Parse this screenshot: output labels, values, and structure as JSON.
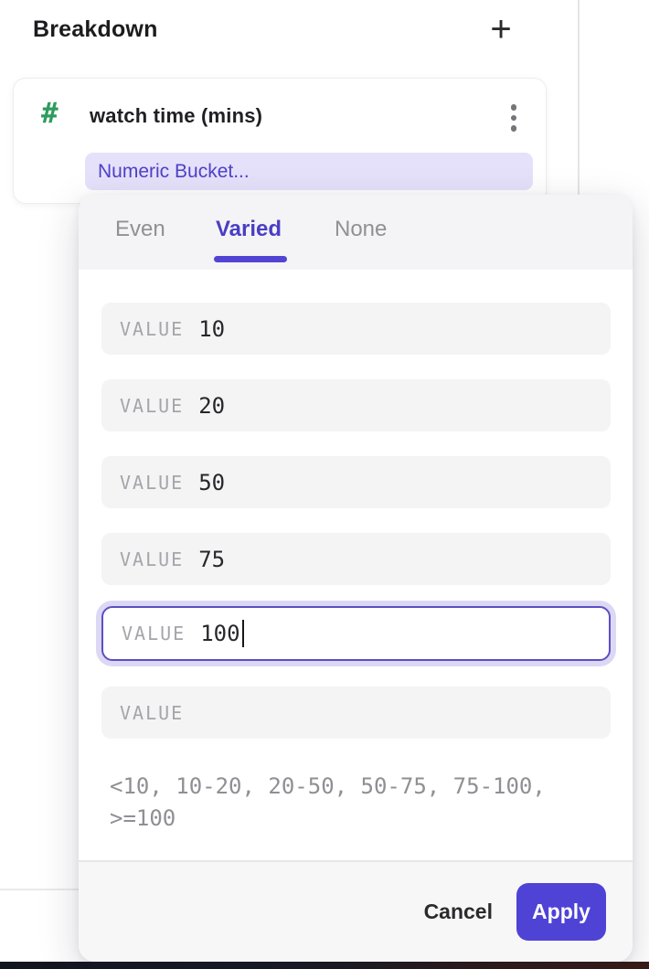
{
  "breakdown_panel": {
    "title": "Breakdown",
    "add_button": "+"
  },
  "property_card": {
    "type_icon": "#",
    "name": "watch time (mins)",
    "bucket_label": "Numeric Bucket..."
  },
  "bucket_popover": {
    "tabs": [
      {
        "label": "Even",
        "active": false
      },
      {
        "label": "Varied",
        "active": true
      },
      {
        "label": "None",
        "active": false
      }
    ],
    "value_rows": [
      {
        "label": "VALUE",
        "value": "10"
      },
      {
        "label": "VALUE",
        "value": "20"
      },
      {
        "label": "VALUE",
        "value": "50"
      },
      {
        "label": "VALUE",
        "value": "75"
      },
      {
        "label": "VALUE",
        "value": "100",
        "focused": true
      },
      {
        "label": "VALUE",
        "value": ""
      }
    ],
    "preview": "<10, 10-20, 20-50, 50-75, 75-100, >=100",
    "footer": {
      "cancel": "Cancel",
      "apply": "Apply"
    }
  },
  "colors": {
    "accent": "#4f43d6",
    "active_tab": "#4a3ec5",
    "tab_underline": "#5144d2",
    "chip_bg": "#e5e1fa",
    "chip_text": "#4e41c6",
    "hash_green": "#2e9c5e",
    "row_bg": "#f4f4f5",
    "focus_border": "#5b4ec4",
    "focus_halo": "#dcd8f4",
    "preview_text": "#8f8f94"
  }
}
